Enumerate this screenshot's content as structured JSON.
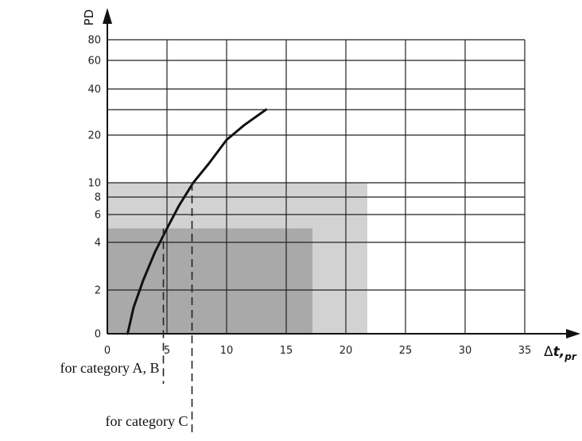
{
  "chart_data": {
    "type": "line",
    "xlabel_symbol": "Δ",
    "xlabel_var": "t,",
    "xlabel_sub": "pr",
    "ylabel": "PD",
    "x_ticks": [
      0,
      5,
      10,
      15,
      20,
      25,
      30,
      35
    ],
    "y_ticks": [
      0,
      2,
      4,
      6,
      8,
      10,
      20,
      40,
      60,
      80
    ],
    "xlim": [
      0,
      35
    ],
    "y_scale": "nonlinear",
    "grid": true,
    "series": [
      {
        "type": "curve",
        "color": "#111111",
        "x": [
          1.7,
          2.2,
          3.0,
          4.0,
          5.0,
          6.0,
          7.2,
          8.5,
          10.0,
          11.5,
          13.3
        ],
        "y": [
          0,
          1.2,
          2.4,
          3.6,
          5.0,
          7.0,
          10.0,
          14.0,
          19.0,
          24.0,
          30.0
        ]
      }
    ],
    "regions": [
      {
        "x": [
          0,
          21.8
        ],
        "y": [
          0,
          10
        ],
        "color": "#d2d2d2"
      },
      {
        "x": [
          0,
          17.2
        ],
        "y": [
          0,
          5
        ],
        "color": "#a9a9a9"
      }
    ],
    "markers": [
      {
        "label": "for category A, B",
        "x": 4.7,
        "y": 5
      },
      {
        "label": "for category C",
        "x": 7.1,
        "y": 10
      }
    ]
  }
}
